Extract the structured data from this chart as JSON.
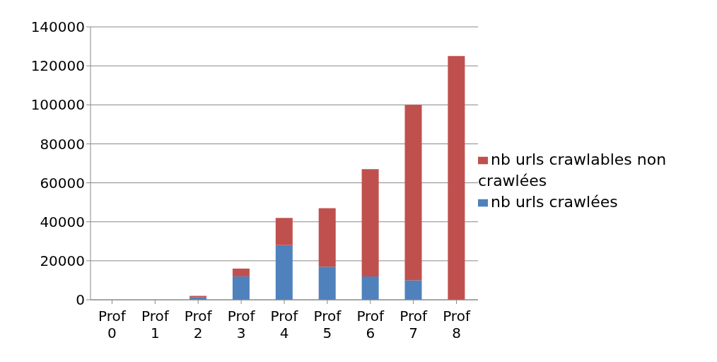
{
  "chart_data": {
    "type": "bar",
    "stacked": true,
    "categories": [
      "Prof 0",
      "Prof 1",
      "Prof 2",
      "Prof 3",
      "Prof 4",
      "Prof 5",
      "Prof 6",
      "Prof 7",
      "Prof 8"
    ],
    "series": [
      {
        "name": "nb urls crawlées",
        "color": "#4f81bd",
        "values": [
          0,
          0,
          1200,
          12000,
          28000,
          17000,
          12000,
          10000,
          0
        ]
      },
      {
        "name": "nb urls crawlables non crawlées",
        "color": "#c0504d",
        "values": [
          0,
          0,
          800,
          4000,
          14000,
          30000,
          55000,
          90000,
          125000
        ]
      }
    ],
    "ylim": [
      0,
      140000
    ],
    "yticks": [
      0,
      20000,
      40000,
      60000,
      80000,
      100000,
      120000,
      140000
    ],
    "grid": "y",
    "legend": "right"
  }
}
